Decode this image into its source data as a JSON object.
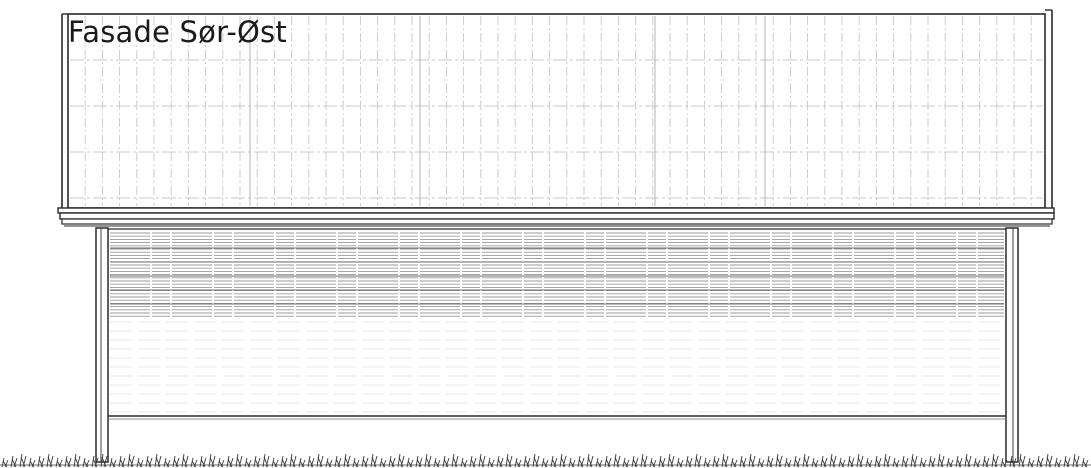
{
  "drawing": {
    "title": "Fasade Sør-Øst"
  },
  "colors": {
    "line": "#2a2a2a",
    "hatch": "#9a9a9a",
    "light_hatch": "#c8c8c8",
    "grass": "#3a3a3a"
  },
  "icons": {
    "grass": "grass-tuft-icon"
  }
}
